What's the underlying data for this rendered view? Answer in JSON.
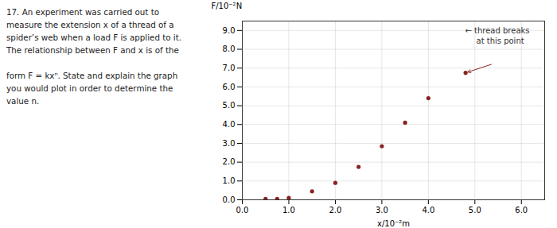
{
  "chart_data": {
    "type": "scatter",
    "x": [
      0.5,
      0.75,
      1.0,
      1.5,
      2.0,
      2.5,
      3.0,
      3.5,
      4.0,
      4.8
    ],
    "values": [
      0.05,
      0.05,
      0.1,
      0.45,
      0.9,
      1.75,
      2.85,
      4.1,
      5.4,
      6.75
    ],
    "color": "#8b2222",
    "marker": "circle",
    "xlabel": "x/10⁻²m",
    "ylabel": "F/10⁻²N",
    "xlim": [
      0.0,
      6.5
    ],
    "ylim": [
      0.0,
      9.5
    ],
    "xticks": [
      {
        "value": 0,
        "label": "0.0"
      },
      {
        "value": 1,
        "label": "1.0"
      },
      {
        "value": 2,
        "label": "2.0"
      },
      {
        "value": 3,
        "label": "3.0"
      },
      {
        "value": 4,
        "label": "4.0"
      },
      {
        "value": 5,
        "label": "5.0"
      },
      {
        "value": 6,
        "label": "6.0"
      }
    ],
    "yticks": [
      {
        "value": 0,
        "label": "0.0"
      },
      {
        "value": 1,
        "label": "1.0"
      },
      {
        "value": 2,
        "label": "2.0"
      },
      {
        "value": 3,
        "label": "3.0"
      },
      {
        "value": 4,
        "label": "4.0"
      },
      {
        "value": 5,
        "label": "5.0"
      },
      {
        "value": 6,
        "label": "6.0"
      },
      {
        "value": 7,
        "label": "7.0"
      },
      {
        "value": 8,
        "label": "8.0"
      },
      {
        "value": 9,
        "label": "9.0"
      }
    ],
    "grid": true,
    "annotations": [
      "17. An experiment was carried out to\nmeasure the extension x of a thread of a\nspider’s web when a load F is applied to it.\nThe relationship between F and x is of the\n\nform F = kxⁿ. State and explain the graph\nyou would plot in order to determine the\nvalue n.",
      "← thread breaks",
      "at this point"
    ]
  }
}
